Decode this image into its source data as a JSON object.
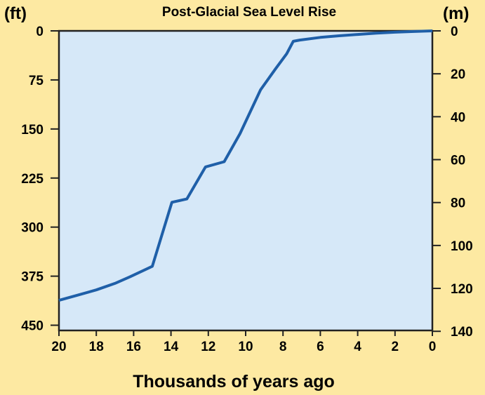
{
  "chart_data": {
    "type": "line",
    "title": "Post-Glacial Sea Level Rise",
    "xlabel": "Thousands of years ago",
    "ylabel_left": "(ft)",
    "ylabel_right": "(m)",
    "xlim": [
      20,
      0
    ],
    "ylim_left": [
      0,
      450
    ],
    "ylim_right": [
      0,
      140
    ],
    "y_inverted": true,
    "grid": false,
    "x_ticks": [
      20,
      18,
      16,
      14,
      12,
      10,
      8,
      6,
      4,
      2,
      0
    ],
    "y_ticks_left": [
      0,
      75,
      150,
      225,
      300,
      375,
      450
    ],
    "y_ticks_right": [
      0,
      20,
      40,
      60,
      80,
      100,
      120,
      140
    ],
    "series": [
      {
        "x": [
          20,
          19,
          18,
          17,
          16.2,
          15,
          13.95,
          13.15,
          12.15,
          11.15,
          10.3,
          9.2,
          8.4,
          7.8,
          7.45,
          7.1,
          6,
          5,
          4,
          3,
          2,
          1,
          0
        ],
        "y": [
          412,
          404,
          396,
          386,
          376,
          360,
          262,
          257,
          208,
          200,
          157,
          90,
          58,
          35,
          16,
          14,
          10,
          7.5,
          5.5,
          3.5,
          2,
          1,
          0
        ]
      }
    ],
    "colors": {
      "background": "#FDE9A2",
      "plot_area": "#D6E8F8",
      "line": "#1F5FA8",
      "axis": "#222222"
    }
  }
}
